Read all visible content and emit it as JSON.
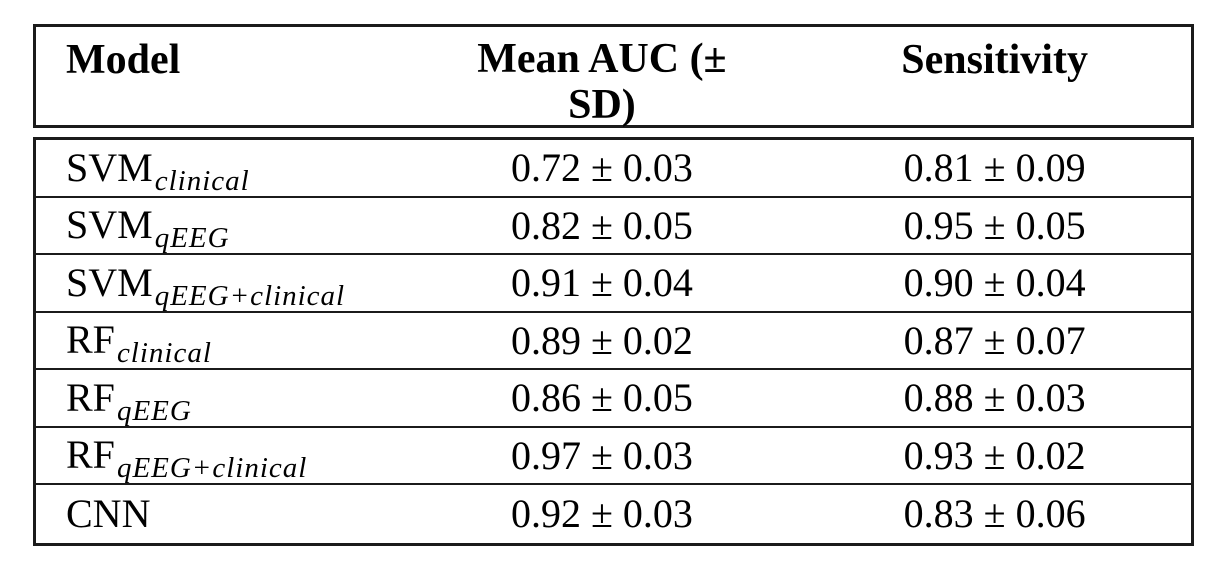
{
  "page": {
    "background": "#ffffff",
    "text_color": "#000000",
    "border_color": "#1b1b1b"
  },
  "table": {
    "header": {
      "model": "Model",
      "auc_line1": "Mean AUC (±",
      "auc_line2": "SD)",
      "sensitivity": "Sensitivity"
    },
    "rows": [
      {
        "model_base": "SVM",
        "model_sub": "clinical",
        "auc": "0.72 ± 0.03",
        "sensitivity": "0.81 ± 0.09"
      },
      {
        "model_base": "SVM",
        "model_sub": "qEEG",
        "auc": "0.82 ± 0.05",
        "sensitivity": "0.95 ± 0.05"
      },
      {
        "model_base": "SVM",
        "model_sub": "qEEG+clinical",
        "auc": "0.91 ± 0.04",
        "sensitivity": "0.90 ± 0.04"
      },
      {
        "model_base": "RF",
        "model_sub": "clinical",
        "auc": "0.89 ± 0.02",
        "sensitivity": "0.87 ± 0.07"
      },
      {
        "model_base": "RF",
        "model_sub": "qEEG",
        "auc": "0.86 ± 0.05",
        "sensitivity": "0.88 ± 0.03"
      },
      {
        "model_base": "RF",
        "model_sub": "qEEG+clinical",
        "auc": "0.97 ± 0.03",
        "sensitivity": "0.93 ± 0.02"
      },
      {
        "model_base": "CNN",
        "model_sub": "",
        "auc": "0.92 ± 0.03",
        "sensitivity": "0.83 ± 0.06"
      }
    ]
  },
  "chart_data": {
    "type": "table",
    "columns": [
      "Model",
      "Mean AUC (± SD)",
      "Sensitivity"
    ],
    "rows": [
      [
        "SVM_clinical",
        "0.72 ± 0.03",
        "0.81 ± 0.09"
      ],
      [
        "SVM_qEEG",
        "0.82 ± 0.05",
        "0.95 ± 0.05"
      ],
      [
        "SVM_qEEG+clinical",
        "0.91 ± 0.04",
        "0.90 ± 0.04"
      ],
      [
        "RF_clinical",
        "0.89 ± 0.02",
        "0.87 ± 0.07"
      ],
      [
        "RF_qEEG",
        "0.86 ± 0.05",
        "0.88 ± 0.03"
      ],
      [
        "RF_qEEG+clinical",
        "0.97 ± 0.03",
        "0.93 ± 0.02"
      ],
      [
        "CNN",
        "0.92 ± 0.03",
        "0.83 ± 0.06"
      ]
    ]
  }
}
